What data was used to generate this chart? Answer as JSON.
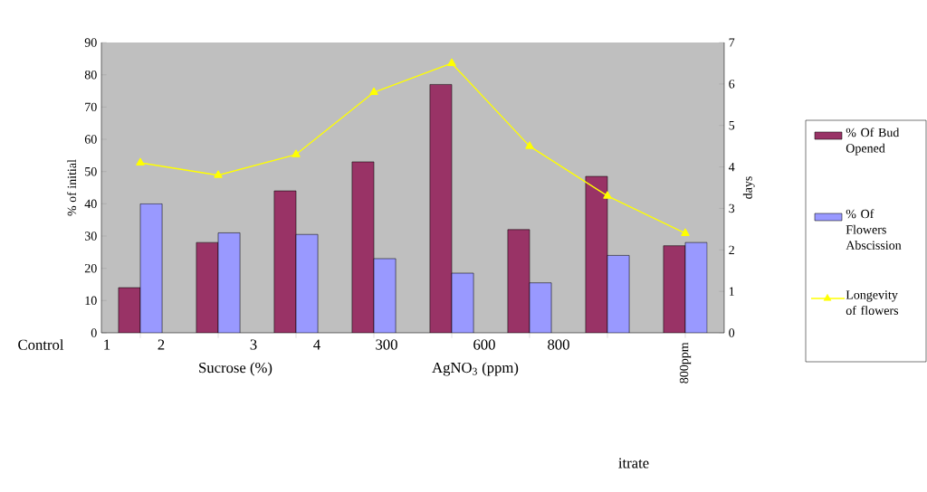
{
  "chart_data": {
    "type": "bar",
    "categories": [
      null,
      null,
      null,
      null,
      null,
      null,
      null,
      "800ppm"
    ],
    "series": [
      {
        "name": "% Of Bud Opened",
        "color": "#993366",
        "values": [
          14,
          28,
          44,
          53,
          77,
          32,
          48.5,
          27
        ]
      },
      {
        "name": "% Of Flowers Abscission",
        "color": "#9999ff",
        "values": [
          40,
          31,
          30.5,
          23,
          18.5,
          15.5,
          24,
          28
        ]
      },
      {
        "name": "Longevity of flowers",
        "type": "line",
        "axis": "y2",
        "color": "#ffff00",
        "marker": "triangle",
        "line_style": "solid",
        "values": [
          4.1,
          3.8,
          4.3,
          5.8,
          6.5,
          4.5,
          3.3,
          2.4
        ]
      }
    ],
    "ylabel": "% of initial",
    "y2label": "days",
    "ylim": [
      0,
      90
    ],
    "yticks": [
      0,
      10,
      20,
      30,
      40,
      50,
      60,
      70,
      80,
      90
    ],
    "y2lim": [
      0,
      7
    ],
    "y2ticks": [
      0,
      1,
      2,
      3,
      4,
      5,
      6,
      7
    ],
    "legend": "right",
    "grid": false,
    "annotations": [
      "Control",
      "1",
      "2",
      "3",
      "4",
      "300",
      "600",
      "800",
      "Sucrose (%)",
      "AgNO$_{3}$ (ppm)",
      "itrate"
    ]
  }
}
